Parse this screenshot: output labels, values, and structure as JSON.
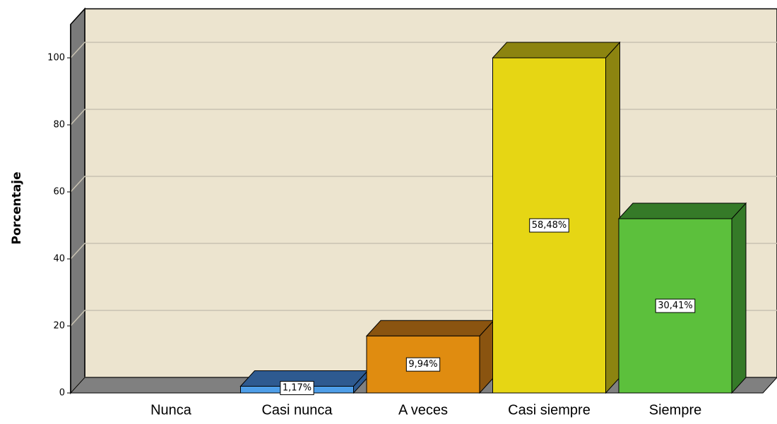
{
  "chart_data": {
    "type": "bar3d",
    "y_label": "Porcentaje",
    "categories": [
      "Nunca",
      "Casi nunca",
      "A veces",
      "Casi siempre",
      "Siempre"
    ],
    "values": [
      0,
      2,
      17,
      100,
      52
    ],
    "percent_labels": [
      null,
      "1,17%",
      "9,94%",
      "58,48%",
      "30,41%"
    ],
    "colors": [
      null,
      "#4e9ee8",
      "#e08c10",
      "#e6d614",
      "#5cc03c"
    ],
    "top_colors": [
      null,
      "#2e5a90",
      "#8a5410",
      "#8c8410",
      "#357a28"
    ],
    "ylim": [
      0,
      110
    ],
    "yticks": [
      0,
      20,
      40,
      60,
      80,
      100
    ],
    "grid": true
  }
}
